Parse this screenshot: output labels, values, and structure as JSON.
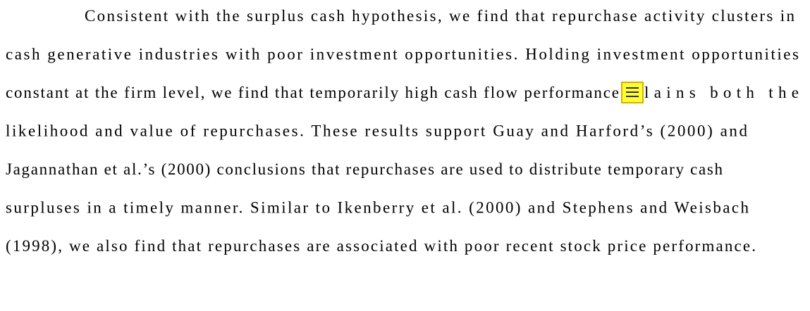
{
  "paragraph": {
    "lines": [
      "Consistent with the surplus cash hypothesis, we find that repurchase activity clusters in",
      "cash generative industries with poor investment opportunities. Holding investment opportunities",
      [
        "constant at the firm level, we find that temporarily high cash flow performance",
        "lains both the"
      ],
      "likelihood and value of repurchases. These results support Guay and Harford’s (2000) and",
      "Jagannathan et al.’s (2000) conclusions that repurchases are used to distribute temporary cash",
      "surpluses in a timely manner. Similar to Ikenberry et al. (2000) and Stephens and Weisbach",
      "(1998), we also find that repurchases are associated with poor recent stock price performance."
    ]
  }
}
